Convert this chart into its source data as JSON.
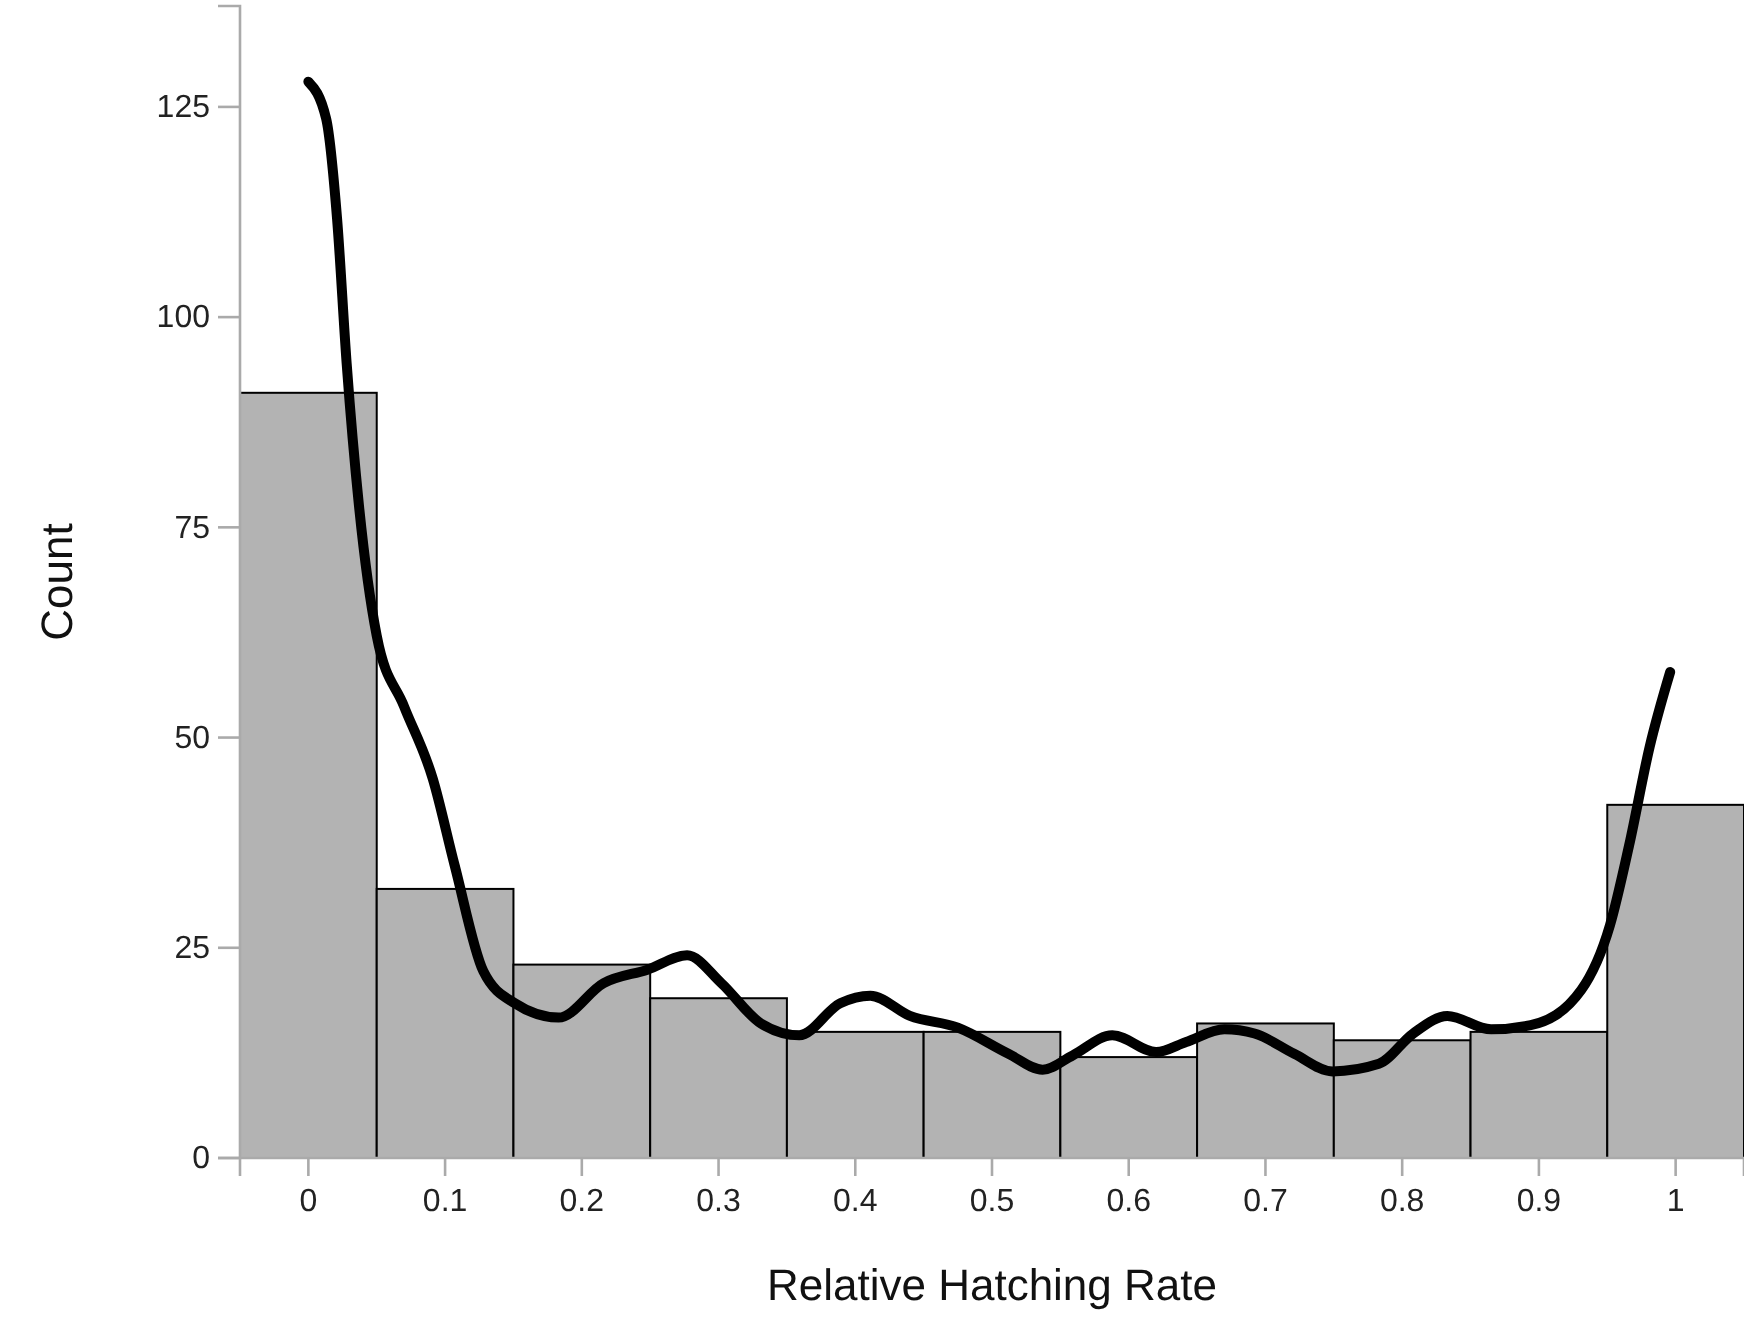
{
  "chart_data": {
    "type": "histogram",
    "xlabel": "Relative Hatching Rate",
    "ylabel": "Count",
    "bins": [
      -0.05,
      0.05,
      0.15,
      0.25,
      0.35,
      0.45,
      0.55,
      0.65,
      0.75,
      0.85,
      0.95,
      1.05
    ],
    "values": [
      91,
      32,
      23,
      19,
      15,
      15,
      12,
      16,
      14,
      15,
      42
    ],
    "color": "#b3b3b3",
    "series": [
      {
        "type": "line",
        "color": "#000000",
        "x": [
          0,
          0.013,
          0.021,
          0.028,
          0.037,
          0.05,
          0.07,
          0.091,
          0.107,
          0.128,
          0.151,
          0.183,
          0.216,
          0.248,
          0.277,
          0.302,
          0.331,
          0.359,
          0.389,
          0.411,
          0.44,
          0.475,
          0.512,
          0.537,
          0.559,
          0.588,
          0.62,
          0.642,
          0.67,
          0.692,
          0.721,
          0.749,
          0.783,
          0.808,
          0.833,
          0.865,
          0.894,
          0.931,
          0.952,
          0.966,
          0.981,
          0.996
        ],
        "values": [
          128,
          123.6,
          111.7,
          94.5,
          77.6,
          62.1,
          53.7,
          45.1,
          34.8,
          22.2,
          18.4,
          16.7,
          20.8,
          22.4,
          24.1,
          20.8,
          16,
          14.6,
          18.4,
          19.3,
          16.9,
          15.5,
          12.4,
          10.5,
          12.2,
          14.6,
          12.6,
          13.8,
          15.3,
          14.8,
          12.4,
          10.3,
          11.2,
          14.8,
          16.9,
          15.3,
          15.8,
          20,
          27.7,
          37.2,
          48.9,
          57.8
        ]
      }
    ],
    "xlim": [
      -0.05,
      1.05
    ],
    "xticks": [
      0,
      0.1,
      0.2,
      0.3,
      0.4,
      0.5,
      0.6,
      0.7,
      0.8,
      0.9,
      1
    ],
    "ylim": [
      0,
      137
    ],
    "yticks": [
      0,
      25,
      50,
      75,
      100,
      125
    ],
    "grid": false
  }
}
